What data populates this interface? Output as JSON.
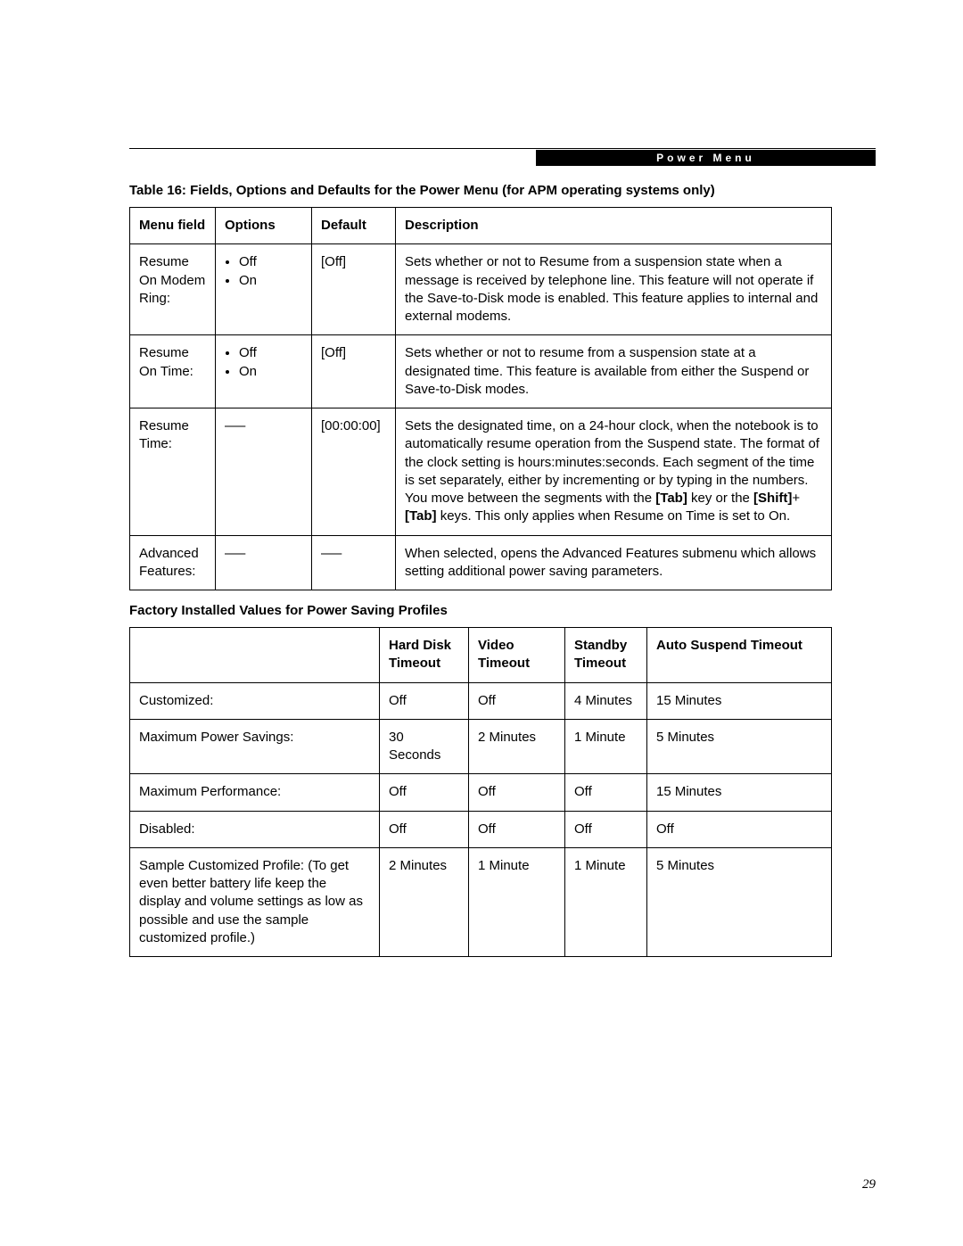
{
  "header": {
    "badge": "Power Menu"
  },
  "table1": {
    "caption": "Table 16: Fields, Options and Defaults for the Power Menu (for APM operating systems only)",
    "columns": [
      "Menu field",
      "Options",
      "Default",
      "Description"
    ],
    "rows": [
      {
        "field": "Resume On Modem Ring:",
        "options": [
          "Off",
          "On"
        ],
        "default": "[Off]",
        "desc": "Sets whether or not to Resume from a suspension state when a message is received by telephone line. This feature will not operate if the Save-to-Disk mode is enabled. This feature applies to internal and external modems."
      },
      {
        "field": "Resume On Time:",
        "options": [
          "Off",
          "On"
        ],
        "default": "[Off]",
        "desc": "Sets whether or not to resume from a suspension state at a designated time. This feature is available from either the Suspend or Save-to-Disk modes."
      },
      {
        "field": "Resume Time:",
        "options": null,
        "default": "[00:00:00]",
        "desc_parts": [
          "Sets the designated time, on a 24-hour clock, when the notebook is to automatically resume operation from the Suspend state. The format of the clock setting is hours:minutes:seconds. Each segment of the time is set separately, either by incrementing or by typing in the numbers. You move between the segments with the ",
          "[Tab]",
          " key or the ",
          "[Shift]",
          "+",
          "[Tab]",
          " keys. This only applies when Resume on Time is set to On."
        ]
      },
      {
        "field": "Advanced Features:",
        "options": null,
        "default": null,
        "desc": "When selected, opens the Advanced Features submenu which allows setting additional power saving parameters."
      }
    ],
    "dash": "—–"
  },
  "table2": {
    "caption": "Factory Installed Values for Power Saving Profiles",
    "columns": [
      "",
      "Hard Disk Timeout",
      "Video Timeout",
      "Standby Timeout",
      "Auto Suspend Timeout"
    ],
    "rows": [
      [
        "Customized:",
        "Off",
        "Off",
        "4 Minutes",
        "15 Minutes"
      ],
      [
        "Maximum Power Savings:",
        "30 Seconds",
        "2 Minutes",
        "1 Minute",
        "5 Minutes"
      ],
      [
        "Maximum Performance:",
        "Off",
        "Off",
        "Off",
        "15 Minutes"
      ],
      [
        "Disabled:",
        "Off",
        "Off",
        "Off",
        "Off"
      ],
      [
        "Sample Customized Profile: (To get even better battery life keep the display and volume settings as low as possible and use the sample customized profile.)",
        "2 Minutes",
        "1 Minute",
        "1 Minute",
        "5 Minutes"
      ]
    ]
  },
  "page_number": "29"
}
